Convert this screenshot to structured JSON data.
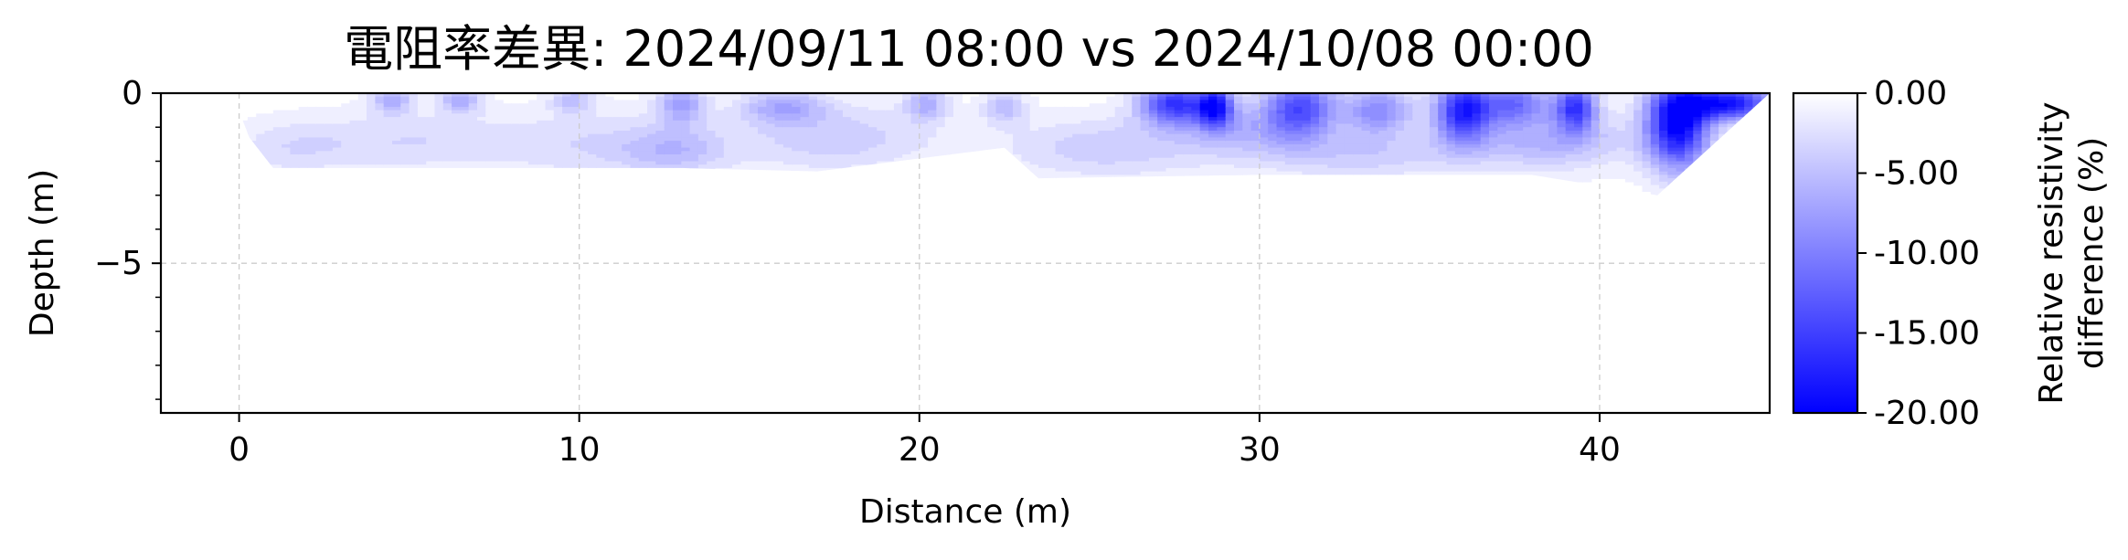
{
  "chart_data": {
    "type": "heatmap",
    "title": "電阻率差異: 2024/09/11 08:00 vs 2024/10/08 00:00",
    "xlabel": "Distance (m)",
    "ylabel": "Depth (m)",
    "xlim": [
      -2.3,
      45.0
    ],
    "ylim": [
      -9.4,
      0
    ],
    "xticks": [
      "0",
      "10",
      "20",
      "30",
      "40"
    ],
    "xtick_values": [
      0,
      10,
      20,
      30,
      40
    ],
    "yticks": [
      "0",
      "−5"
    ],
    "ytick_values": [
      0,
      -5
    ],
    "grid": true,
    "colorbar": {
      "label_line1": "Relative resistivity",
      "label_line2": "difference (%)",
      "range": [
        -20,
        0
      ],
      "ticks": [
        "0.00",
        "-5.00",
        "-10.00",
        "-15.00",
        "-20.00"
      ],
      "tick_values": [
        0,
        -5,
        -10,
        -15,
        -20
      ],
      "colors": {
        "low": "#0000ff",
        "high": "#ffffff"
      }
    },
    "anomalies": [
      {
        "x": 1.5,
        "depth": 1.6,
        "radius_x": 1.8,
        "radius_y": 0.8,
        "value": -2.5
      },
      {
        "x": 5.0,
        "depth": 1.4,
        "radius_x": 3.0,
        "radius_y": 0.9,
        "value": -3.0
      },
      {
        "x": 10.5,
        "depth": 1.5,
        "radius_x": 3.0,
        "radius_y": 1.0,
        "value": -3.0
      },
      {
        "x": 4.5,
        "depth": 0.2,
        "radius_x": 0.6,
        "radius_y": 0.4,
        "value": -6.0
      },
      {
        "x": 6.5,
        "depth": 0.2,
        "radius_x": 0.6,
        "radius_y": 0.4,
        "value": -6.0
      },
      {
        "x": 9.8,
        "depth": 0.2,
        "radius_x": 0.6,
        "radius_y": 0.4,
        "value": -5.0
      },
      {
        "x": 13.0,
        "depth": 0.3,
        "radius_x": 0.7,
        "radius_y": 0.6,
        "value": -7.0
      },
      {
        "x": 12.8,
        "depth": 1.7,
        "radius_x": 1.5,
        "radius_y": 0.7,
        "value": -4.0
      },
      {
        "x": 17.5,
        "depth": 1.3,
        "radius_x": 3.0,
        "radius_y": 1.0,
        "value": -4.0
      },
      {
        "x": 16.0,
        "depth": 0.4,
        "radius_x": 1.2,
        "radius_y": 0.5,
        "value": -6.0
      },
      {
        "x": 20.2,
        "depth": 0.3,
        "radius_x": 0.6,
        "radius_y": 0.5,
        "value": -6.0
      },
      {
        "x": 22.5,
        "depth": 0.4,
        "radius_x": 0.6,
        "radius_y": 0.5,
        "value": -5.0
      },
      {
        "x": 25.5,
        "depth": 1.6,
        "radius_x": 3.0,
        "radius_y": 0.9,
        "value": -4.0
      },
      {
        "x": 27.5,
        "depth": 0.3,
        "radius_x": 1.0,
        "radius_y": 0.6,
        "value": -15.0
      },
      {
        "x": 28.7,
        "depth": 0.4,
        "radius_x": 0.5,
        "radius_y": 0.6,
        "value": -16.0
      },
      {
        "x": 29.5,
        "depth": 1.0,
        "radius_x": 2.0,
        "radius_y": 0.8,
        "value": -5.0
      },
      {
        "x": 31.2,
        "depth": 0.4,
        "radius_x": 1.0,
        "radius_y": 0.9,
        "value": -13.0
      },
      {
        "x": 33.5,
        "depth": 0.5,
        "radius_x": 1.0,
        "radius_y": 0.7,
        "value": -9.0
      },
      {
        "x": 33.0,
        "depth": 1.8,
        "radius_x": 3.0,
        "radius_y": 0.7,
        "value": -4.0
      },
      {
        "x": 36.0,
        "depth": 0.5,
        "radius_x": 0.8,
        "radius_y": 0.9,
        "value": -17.0
      },
      {
        "x": 37.5,
        "depth": 0.3,
        "radius_x": 1.0,
        "radius_y": 0.6,
        "value": -11.0
      },
      {
        "x": 39.3,
        "depth": 0.4,
        "radius_x": 0.6,
        "radius_y": 0.7,
        "value": -15.0
      },
      {
        "x": 38.5,
        "depth": 1.4,
        "radius_x": 2.5,
        "radius_y": 0.8,
        "value": -6.0
      },
      {
        "x": 42.3,
        "depth": 0.9,
        "radius_x": 0.9,
        "radius_y": 1.3,
        "value": -20.0
      },
      {
        "x": 43.8,
        "depth": 0.3,
        "radius_x": 1.4,
        "radius_y": 0.5,
        "value": -18.0
      }
    ]
  }
}
